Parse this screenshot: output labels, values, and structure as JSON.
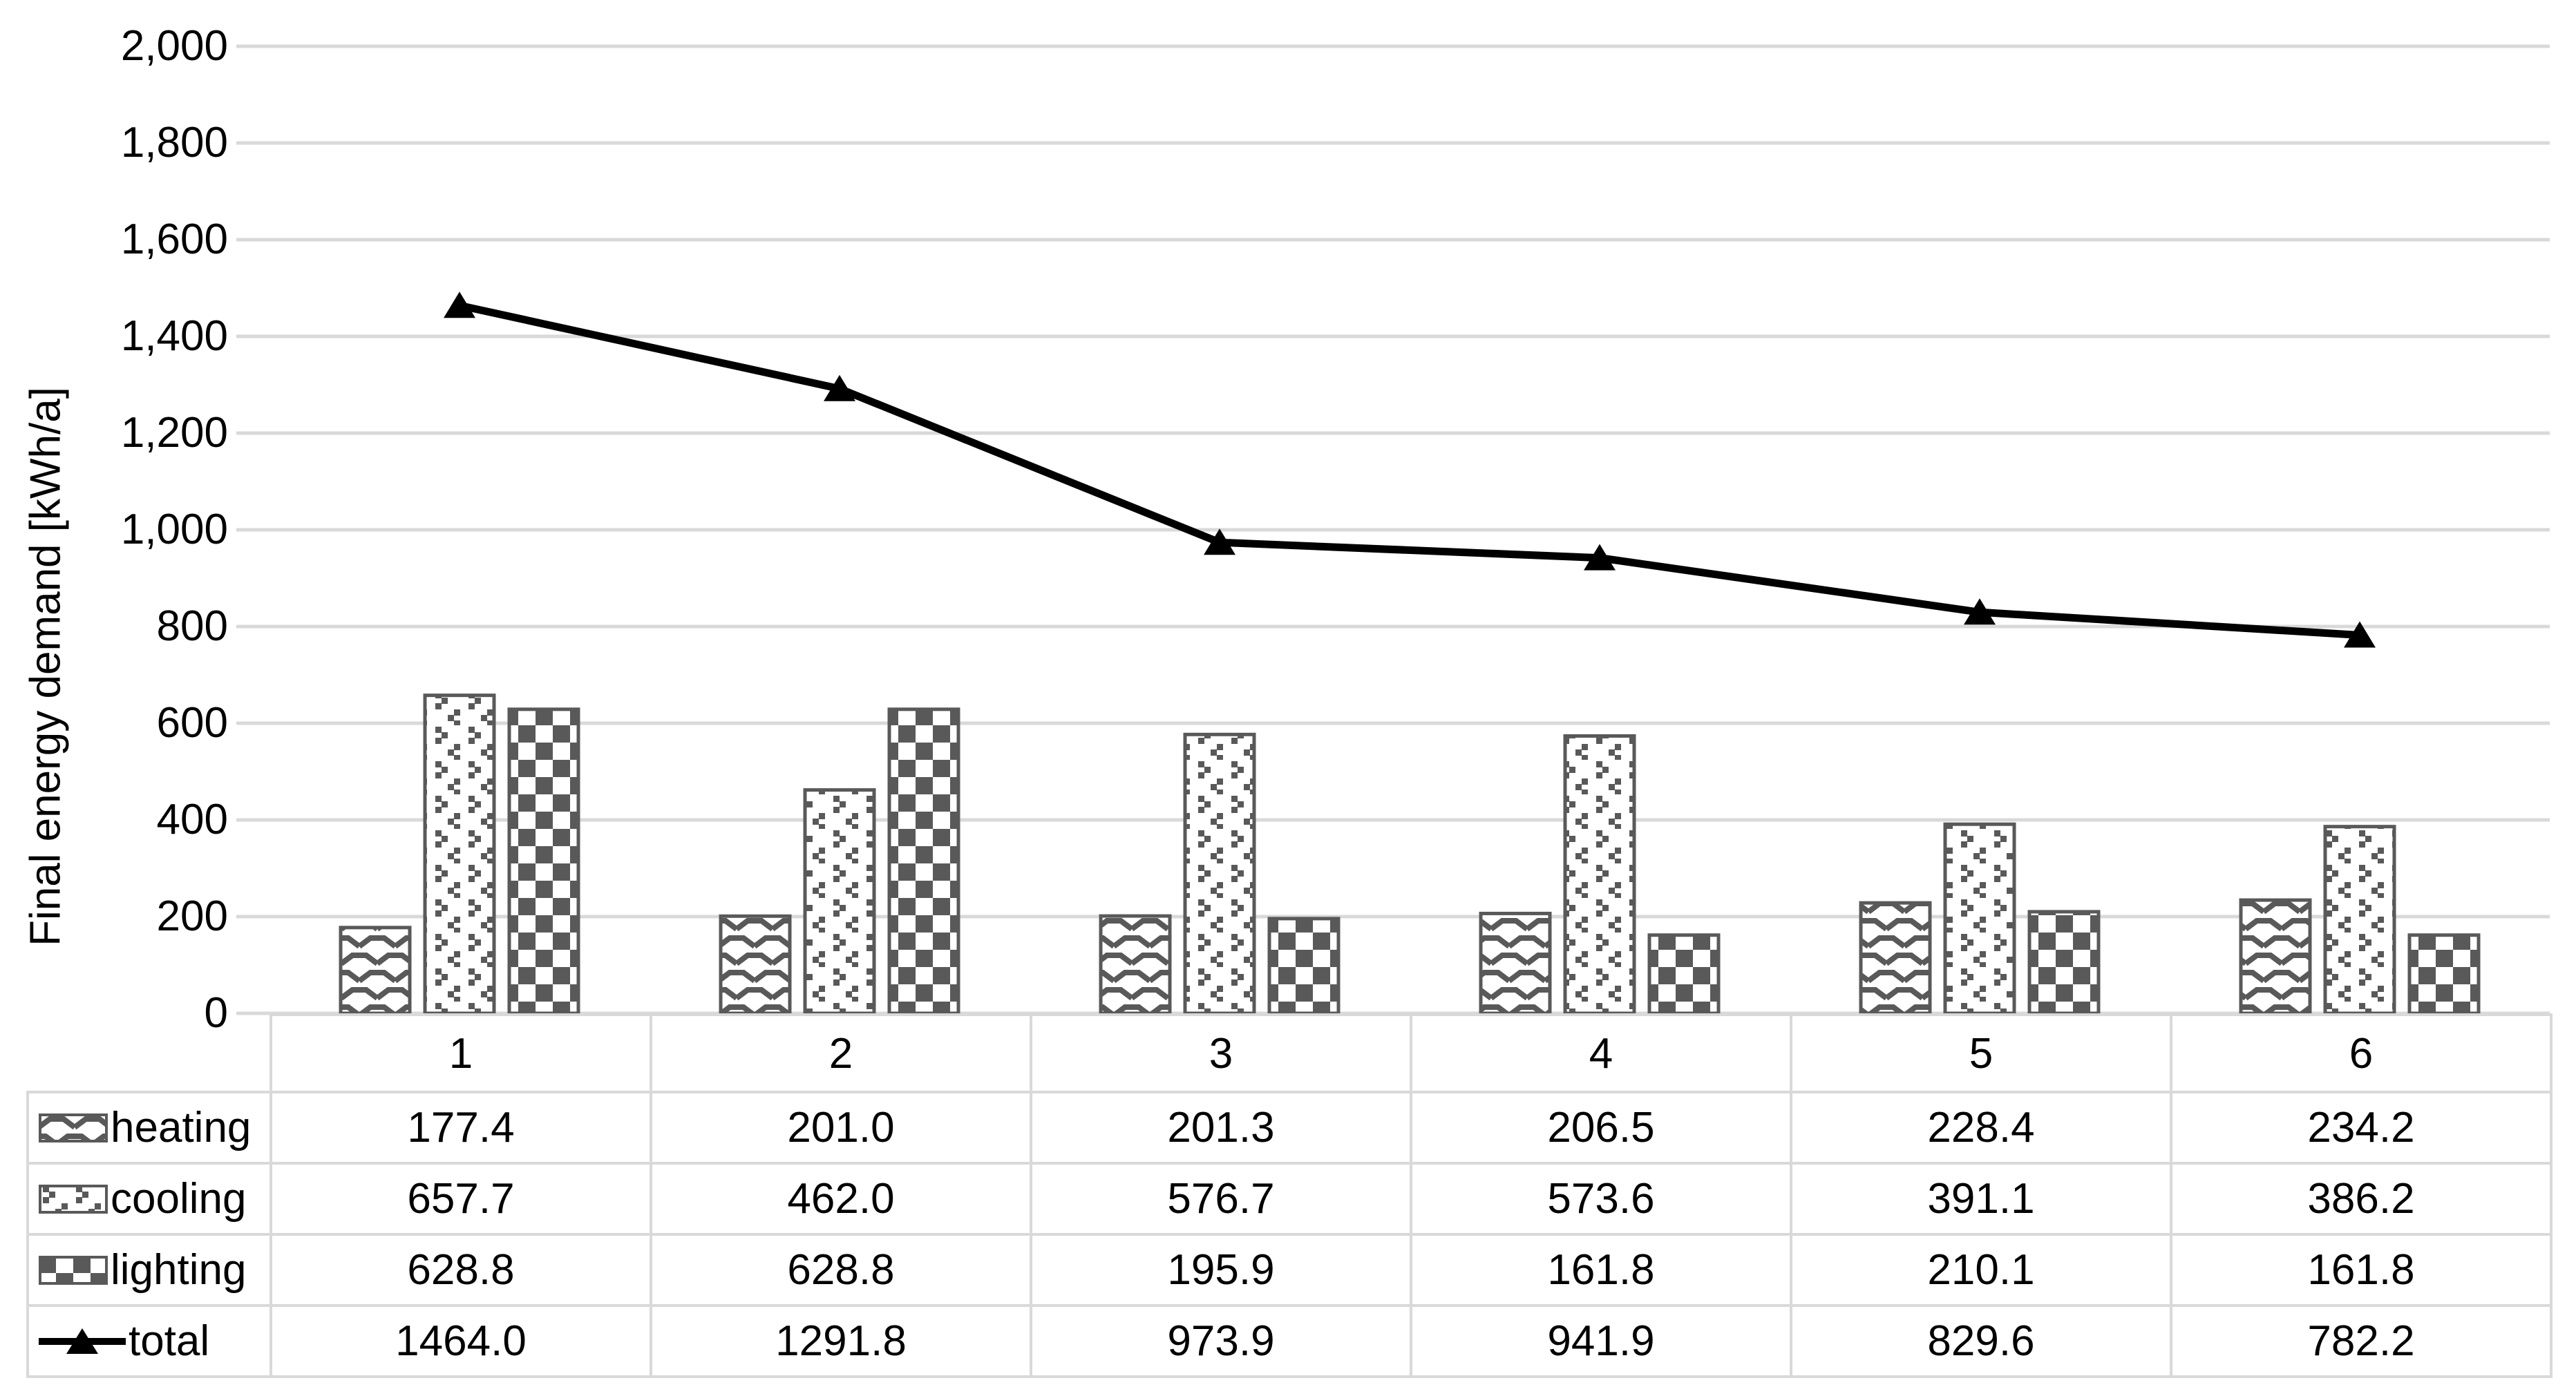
{
  "chart_data": {
    "type": "bar+line combo with data table",
    "title": "",
    "categories": [
      "1",
      "2",
      "3",
      "4",
      "5",
      "6"
    ],
    "series": [
      {
        "name": "heating",
        "type": "bar",
        "pattern": "wave",
        "values": [
          177.4,
          201.0,
          201.3,
          206.5,
          228.4,
          234.2
        ],
        "display": [
          "177.4",
          "201.0",
          "201.3",
          "206.5",
          "228.4",
          "234.2"
        ]
      },
      {
        "name": "cooling",
        "type": "bar",
        "pattern": "divot",
        "values": [
          657.7,
          462.0,
          576.7,
          573.6,
          391.1,
          386.2
        ],
        "display": [
          "657.7",
          "462.0",
          "576.7",
          "573.6",
          "391.1",
          "386.2"
        ]
      },
      {
        "name": "lighting",
        "type": "bar",
        "pattern": "checker",
        "values": [
          628.8,
          628.8,
          195.9,
          161.8,
          210.1,
          161.8
        ],
        "display": [
          "628.8",
          "628.8",
          "195.9",
          "161.8",
          "210.1",
          "161.8"
        ]
      },
      {
        "name": "total",
        "type": "line",
        "pattern": "solid-line-triangle-marker",
        "values": [
          1464.0,
          1291.8,
          973.9,
          941.9,
          829.6,
          782.2
        ],
        "display": [
          "1464.0",
          "1291.8",
          "973.9",
          "941.9",
          "829.6",
          "782.2"
        ]
      }
    ],
    "y_axis": {
      "title": "Final energy demand [kWh/a]",
      "min": 0,
      "max": 2000,
      "step": 200,
      "ticks": [
        "2,000",
        "1,800",
        "1,600",
        "1,400",
        "1,200",
        "1,000",
        "800",
        "600",
        "400",
        "200",
        "0"
      ]
    },
    "x_axis": {
      "label": ""
    },
    "grid": "horizontal gridlines on",
    "legend_position": "table-left-column",
    "colors": {
      "pattern_fg": "#595959",
      "bar_fill_bg": "#ffffff",
      "gridline": "#D9D9D9",
      "table_border": "#D9D9D9",
      "line_series": "#000000",
      "text": "#000000"
    }
  }
}
